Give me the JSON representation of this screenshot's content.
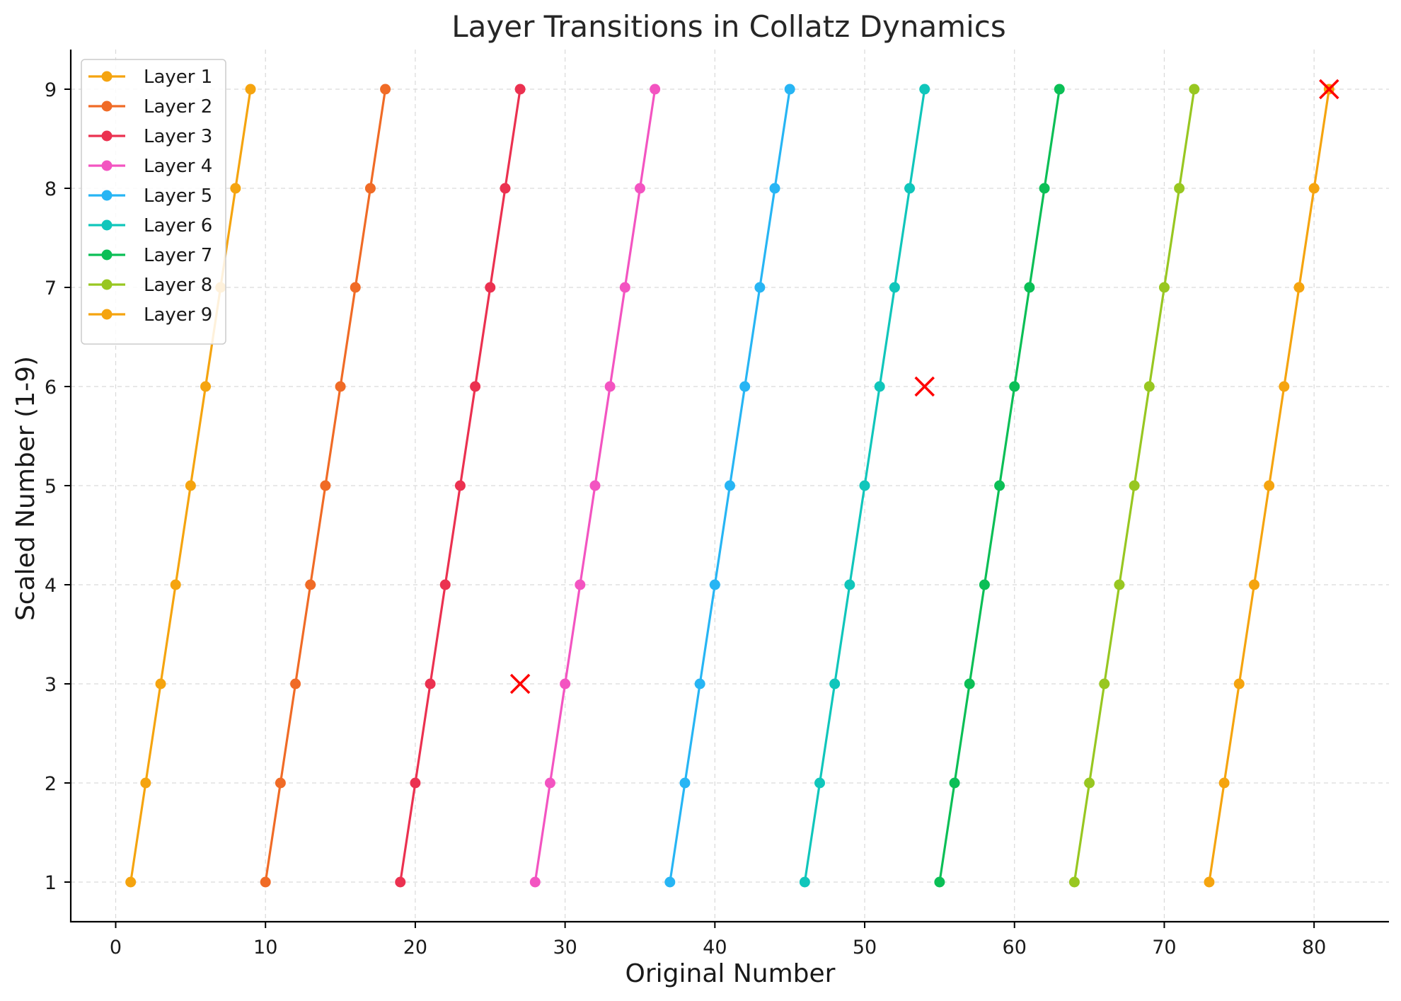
{
  "chart_data": {
    "type": "line",
    "title": "Layer Transitions in Collatz Dynamics",
    "xlabel": "Original Number",
    "ylabel": "Scaled Number (1-9)",
    "xlim": [
      -3,
      85
    ],
    "ylim": [
      0.6,
      9.4
    ],
    "xticks": [
      0,
      10,
      20,
      30,
      40,
      50,
      60,
      70,
      80
    ],
    "yticks": [
      1,
      2,
      3,
      4,
      5,
      6,
      7,
      8,
      9
    ],
    "grid": true,
    "legend_position": "top-left",
    "series": [
      {
        "name": "Layer 1",
        "color": "#f5a40f",
        "x": [
          1,
          2,
          3,
          4,
          5,
          6,
          7,
          8,
          9
        ],
        "y": [
          1,
          2,
          3,
          4,
          5,
          6,
          7,
          8,
          9
        ]
      },
      {
        "name": "Layer 2",
        "color": "#f06b26",
        "x": [
          10,
          11,
          12,
          13,
          14,
          15,
          16,
          17,
          18
        ],
        "y": [
          1,
          2,
          3,
          4,
          5,
          6,
          7,
          8,
          9
        ]
      },
      {
        "name": "Layer 3",
        "color": "#eb3150",
        "x": [
          19,
          20,
          21,
          22,
          23,
          24,
          25,
          26,
          27
        ],
        "y": [
          1,
          2,
          3,
          4,
          5,
          6,
          7,
          8,
          9
        ]
      },
      {
        "name": "Layer 4",
        "color": "#f354c1",
        "x": [
          28,
          29,
          30,
          31,
          32,
          33,
          34,
          35,
          36
        ],
        "y": [
          1,
          2,
          3,
          4,
          5,
          6,
          7,
          8,
          9
        ]
      },
      {
        "name": "Layer 5",
        "color": "#27b5f4",
        "x": [
          37,
          38,
          39,
          40,
          41,
          42,
          43,
          44,
          45
        ],
        "y": [
          1,
          2,
          3,
          4,
          5,
          6,
          7,
          8,
          9
        ]
      },
      {
        "name": "Layer 6",
        "color": "#10c6bb",
        "x": [
          46,
          47,
          48,
          49,
          50,
          51,
          52,
          53,
          54
        ],
        "y": [
          1,
          2,
          3,
          4,
          5,
          6,
          7,
          8,
          9
        ]
      },
      {
        "name": "Layer 7",
        "color": "#0bbf56",
        "x": [
          55,
          56,
          57,
          58,
          59,
          60,
          61,
          62,
          63
        ],
        "y": [
          1,
          2,
          3,
          4,
          5,
          6,
          7,
          8,
          9
        ]
      },
      {
        "name": "Layer 8",
        "color": "#98c721",
        "x": [
          64,
          65,
          66,
          67,
          68,
          69,
          70,
          71,
          72
        ],
        "y": [
          1,
          2,
          3,
          4,
          5,
          6,
          7,
          8,
          9
        ]
      },
      {
        "name": "Layer 9",
        "color": "#f5a40f",
        "x": [
          73,
          74,
          75,
          76,
          77,
          78,
          79,
          80,
          81
        ],
        "y": [
          1,
          2,
          3,
          4,
          5,
          6,
          7,
          8,
          9
        ]
      }
    ],
    "markers": {
      "color": "#ff0000",
      "symbol": "x",
      "points": [
        {
          "x": 27,
          "y": 3
        },
        {
          "x": 54,
          "y": 6
        },
        {
          "x": 81,
          "y": 9
        }
      ]
    }
  }
}
